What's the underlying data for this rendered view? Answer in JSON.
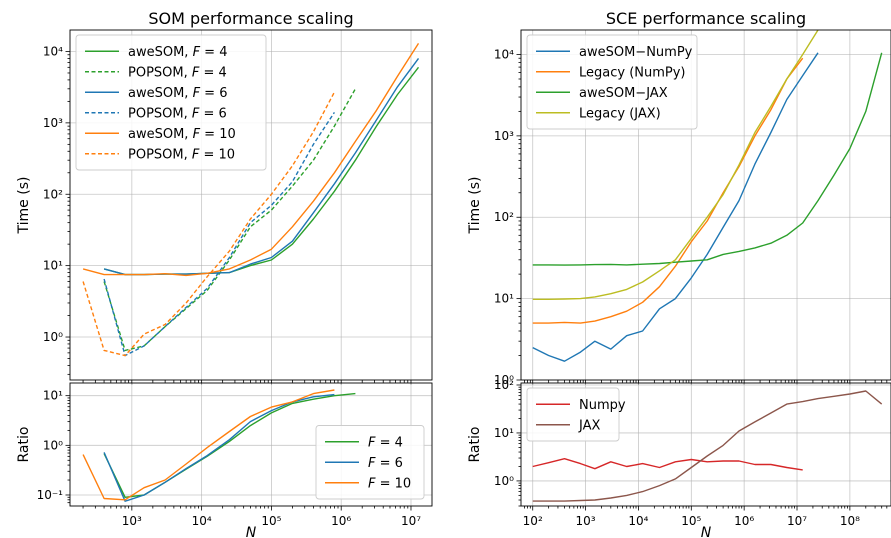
{
  "chart_data": [
    {
      "id": "som_time",
      "type": "line",
      "title": "SOM performance scaling",
      "xlabel": "",
      "ylabel": "Time (s)",
      "xscale": "log",
      "yscale": "log",
      "xlim": [
        130,
        20000000
      ],
      "ylim": [
        0.25,
        20000
      ],
      "xticks": [
        1000,
        10000,
        100000,
        1000000,
        10000000
      ],
      "xticklabels": [
        "",
        "",
        "",
        "",
        ""
      ],
      "yticks": [
        1,
        10,
        100,
        1000,
        10000
      ],
      "yticklabels": [
        "10⁰",
        "10¹",
        "10²",
        "10³",
        "10⁴"
      ],
      "grid": true,
      "legend_position": "top-left",
      "series": [
        {
          "name": "aweSOM, F = 4",
          "color": "#2ca02c",
          "dash": false,
          "x": [
            400,
            800,
            1500,
            3000,
            6000,
            12000,
            25000,
            50000,
            100000,
            200000,
            400000,
            800000,
            1600000,
            3200000,
            6400000,
            12800000
          ],
          "y": [
            9.0,
            7.5,
            7.5,
            7.6,
            7.6,
            7.8,
            8.0,
            10.0,
            12.0,
            20.0,
            45.0,
            110.0,
            300.0,
            900.0,
            2500.0,
            6000.0
          ]
        },
        {
          "name": "POPSOM, F = 4",
          "color": "#2ca02c",
          "dash": true,
          "x": [
            400,
            800,
            1500,
            3000,
            6000,
            12000,
            25000,
            50000,
            100000,
            200000,
            400000,
            800000,
            1600000
          ],
          "y": [
            6.0,
            0.65,
            0.75,
            1.4,
            2.5,
            4.5,
            12.0,
            35.0,
            60.0,
            130.0,
            300.0,
            900.0,
            3000.0
          ]
        },
        {
          "name": "aweSOM, F = 6",
          "color": "#1f77b4",
          "dash": false,
          "x": [
            400,
            800,
            1500,
            3000,
            6000,
            12000,
            25000,
            50000,
            100000,
            200000,
            400000,
            800000,
            1600000,
            3200000,
            6400000,
            12800000
          ],
          "y": [
            9.0,
            7.5,
            7.5,
            7.6,
            7.6,
            7.8,
            8.0,
            10.5,
            13.0,
            22.0,
            55.0,
            140.0,
            380.0,
            1100.0,
            3200.0,
            8000.0
          ]
        },
        {
          "name": "POPSOM, F = 6",
          "color": "#1f77b4",
          "dash": true,
          "x": [
            400,
            800,
            1500,
            3000,
            6000,
            12000,
            25000,
            50000,
            100000,
            200000,
            400000,
            800000
          ],
          "y": [
            6.5,
            0.55,
            0.75,
            1.4,
            2.6,
            4.8,
            13.0,
            40.0,
            70.0,
            150.0,
            500.0,
            1400.0
          ]
        },
        {
          "name": "aweSOM, F = 10",
          "color": "#ff7f0e",
          "dash": false,
          "x": [
            200,
            400,
            800,
            1500,
            3000,
            6000,
            12000,
            25000,
            50000,
            100000,
            200000,
            400000,
            800000,
            1600000,
            3200000,
            6400000,
            12800000
          ],
          "y": [
            9.0,
            7.5,
            7.5,
            7.5,
            7.7,
            7.3,
            7.8,
            9.0,
            12.0,
            17.0,
            35.0,
            80.0,
            200.0,
            550.0,
            1500.0,
            4500.0,
            13000.0
          ]
        },
        {
          "name": "POPSOM, F = 10",
          "color": "#ff7f0e",
          "dash": true,
          "x": [
            200,
            400,
            800,
            1500,
            3000,
            6000,
            12000,
            25000,
            50000,
            100000,
            200000,
            400000,
            800000
          ],
          "y": [
            6.0,
            0.65,
            0.55,
            1.1,
            1.5,
            3.0,
            7.0,
            16.0,
            45.0,
            100.0,
            250.0,
            750.0,
            2700.0
          ]
        }
      ]
    },
    {
      "id": "som_ratio",
      "type": "line",
      "title": "",
      "xlabel": "N",
      "ylabel": "Ratio",
      "xscale": "log",
      "yscale": "log",
      "xlim": [
        130,
        20000000
      ],
      "ylim": [
        0.06,
        18
      ],
      "xticks": [
        1000,
        10000,
        100000,
        1000000,
        10000000
      ],
      "xticklabels": [
        "10³",
        "10⁴",
        "10⁵",
        "10⁶",
        "10⁷"
      ],
      "yticks": [
        0.1,
        1,
        10
      ],
      "yticklabels": [
        "10⁻¹",
        "10⁰",
        "10¹"
      ],
      "grid": true,
      "legend_position": "lower-right",
      "series": [
        {
          "name": "F = 4",
          "color": "#2ca02c",
          "dash": false,
          "x": [
            400,
            800,
            1500,
            3000,
            6000,
            12000,
            25000,
            50000,
            100000,
            200000,
            400000,
            800000,
            1600000
          ],
          "y": [
            0.68,
            0.09,
            0.1,
            0.18,
            0.33,
            0.6,
            1.2,
            2.5,
            4.5,
            7.0,
            8.5,
            10.0,
            11.0
          ]
        },
        {
          "name": "F = 6",
          "color": "#1f77b4",
          "dash": false,
          "x": [
            400,
            800,
            1500,
            3000,
            6000,
            12000,
            25000,
            50000,
            100000,
            200000,
            400000,
            800000
          ],
          "y": [
            0.72,
            0.075,
            0.1,
            0.18,
            0.34,
            0.62,
            1.3,
            3.0,
            5.0,
            7.5,
            9.5,
            10.5
          ]
        },
        {
          "name": "F = 10",
          "color": "#ff7f0e",
          "dash": false,
          "x": [
            200,
            400,
            800,
            1500,
            3000,
            6000,
            12000,
            25000,
            50000,
            100000,
            200000,
            400000,
            800000
          ],
          "y": [
            0.65,
            0.085,
            0.08,
            0.14,
            0.2,
            0.42,
            0.9,
            1.9,
            3.8,
            5.9,
            7.5,
            11.0,
            13.0
          ]
        }
      ]
    },
    {
      "id": "sce_time",
      "type": "line",
      "title": "SCE performance scaling",
      "xlabel": "",
      "ylabel": "Time (s)",
      "xscale": "log",
      "yscale": "log",
      "xlim": [
        60,
        600000000
      ],
      "ylim": [
        1,
        20000
      ],
      "xticks": [
        100,
        1000,
        10000,
        100000,
        1000000,
        10000000,
        100000000
      ],
      "xticklabels": [
        "",
        "",
        "",
        "",
        "",
        "",
        ""
      ],
      "yticks": [
        1,
        10,
        100,
        1000,
        10000
      ],
      "yticklabels": [
        "10⁰",
        "10¹",
        "10²",
        "10³",
        "10⁴"
      ],
      "grid": true,
      "legend_position": "top-left",
      "series": [
        {
          "name": "aweSOM−NumPy",
          "color": "#1f77b4",
          "dash": false,
          "x": [
            100,
            200,
            400,
            800,
            1500,
            3000,
            6000,
            12000,
            25000,
            50000,
            100000,
            200000,
            400000,
            800000,
            1600000,
            3200000,
            6400000,
            12800000,
            25000000
          ],
          "y": [
            2.5,
            2.0,
            1.7,
            2.2,
            3.0,
            2.4,
            3.5,
            4.0,
            7.5,
            10.0,
            18.0,
            35.0,
            75.0,
            160.0,
            450.0,
            1100.0,
            2800.0,
            5500.0,
            10500.0
          ]
        },
        {
          "name": "Legacy (NumPy)",
          "color": "#ff7f0e",
          "dash": false,
          "x": [
            100,
            200,
            400,
            800,
            1500,
            3000,
            6000,
            12000,
            25000,
            50000,
            100000,
            200000,
            400000,
            800000,
            1600000,
            3200000,
            6400000,
            12800000
          ],
          "y": [
            5.0,
            5.0,
            5.1,
            5.0,
            5.3,
            6.0,
            7.0,
            9.0,
            14.0,
            25.0,
            50.0,
            90.0,
            200.0,
            420.0,
            1000.0,
            2100.0,
            5000.0,
            9000.0
          ]
        },
        {
          "name": "aweSOM−JAX",
          "color": "#2ca02c",
          "dash": false,
          "x": [
            100,
            200,
            400,
            800,
            1500,
            3000,
            6000,
            12000,
            25000,
            50000,
            100000,
            200000,
            400000,
            800000,
            1600000,
            3200000,
            6400000,
            12800000,
            25000000,
            50000000,
            100000000,
            200000000,
            400000000
          ],
          "y": [
            26.0,
            26.0,
            25.8,
            26.0,
            26.2,
            26.3,
            26.0,
            26.5,
            27.0,
            28.0,
            29.0,
            30.0,
            35.0,
            38.0,
            42.0,
            48.0,
            60.0,
            85.0,
            160.0,
            330.0,
            700.0,
            2000.0,
            10500.0
          ]
        },
        {
          "name": "Legacy (JAX)",
          "color": "#bcbd22",
          "dash": false,
          "x": [
            100,
            200,
            400,
            800,
            1500,
            3000,
            6000,
            12000,
            25000,
            50000,
            100000,
            200000,
            400000,
            800000,
            1600000,
            3200000,
            6400000,
            12800000,
            25000000
          ],
          "y": [
            9.8,
            9.8,
            9.9,
            10.0,
            10.5,
            11.5,
            13.0,
            16.0,
            22.0,
            30.0,
            55.0,
            100.0,
            190.0,
            440.0,
            1100.0,
            2300.0,
            5000.0,
            10000.0,
            20000.0
          ]
        }
      ]
    },
    {
      "id": "sce_ratio",
      "type": "line",
      "title": "",
      "xlabel": "N",
      "ylabel": "Ratio",
      "xscale": "log",
      "yscale": "log",
      "xlim": [
        60,
        600000000
      ],
      "ylim": [
        0.3,
        110
      ],
      "xticks": [
        100,
        1000,
        10000,
        100000,
        1000000,
        10000000,
        100000000
      ],
      "xticklabels": [
        "10²",
        "10³",
        "10⁴",
        "10⁵",
        "10⁶",
        "10⁷",
        "10⁸"
      ],
      "yticks": [
        1,
        10,
        100
      ],
      "yticklabels": [
        "10⁰",
        "10¹",
        "10²"
      ],
      "grid": true,
      "legend_position": "top-left",
      "series": [
        {
          "name": "Numpy",
          "color": "#d62728",
          "dash": false,
          "x": [
            100,
            200,
            400,
            800,
            1500,
            3000,
            6000,
            12000,
            25000,
            50000,
            100000,
            200000,
            400000,
            800000,
            1600000,
            3200000,
            6400000,
            12800000
          ],
          "y": [
            2.0,
            2.4,
            2.9,
            2.3,
            1.8,
            2.5,
            2.0,
            2.3,
            1.9,
            2.5,
            2.8,
            2.5,
            2.6,
            2.6,
            2.2,
            2.2,
            1.9,
            1.7
          ]
        },
        {
          "name": "JAX",
          "color": "#8c564b",
          "dash": false,
          "x": [
            100,
            200,
            400,
            800,
            1500,
            3000,
            6000,
            12000,
            25000,
            50000,
            100000,
            200000,
            400000,
            800000,
            1600000,
            3200000,
            6400000,
            12800000,
            25000000,
            50000000,
            100000000,
            200000000,
            400000000
          ],
          "y": [
            0.38,
            0.38,
            0.38,
            0.39,
            0.4,
            0.44,
            0.5,
            0.6,
            0.8,
            1.1,
            1.9,
            3.3,
            5.5,
            11.0,
            17.0,
            26.0,
            40.0,
            45.0,
            52.0,
            58.0,
            65.0,
            75.0,
            40.0
          ]
        }
      ]
    }
  ]
}
